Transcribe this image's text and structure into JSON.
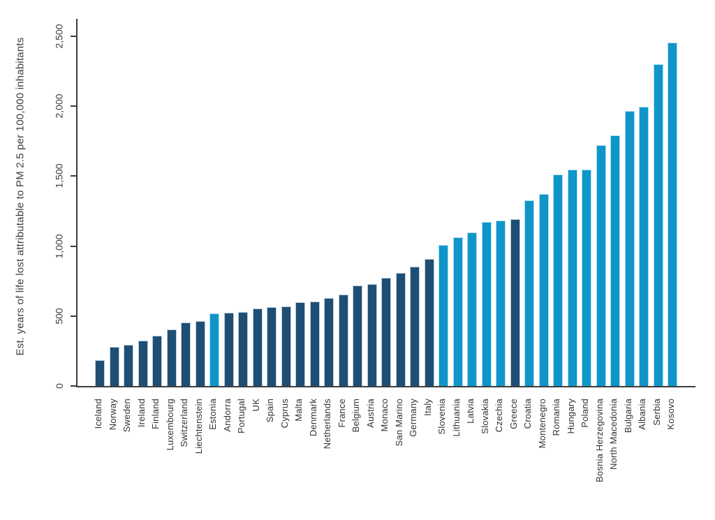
{
  "figure": {
    "background": "#ffffff",
    "axis_color": "#3c3c3c",
    "text_color": "#3d3d3d"
  },
  "chart_data": {
    "type": "bar",
    "title": "",
    "xlabel": "",
    "ylabel": "Est. years of life lost attributable to PM 2.5 per 100,000 inhabitants",
    "ylim": [
      0,
      2500
    ],
    "yticks": [
      0,
      500,
      1000,
      1500,
      2000,
      2500
    ],
    "ytick_labels": [
      "0",
      "500",
      "1,000",
      "1,500",
      "2,000",
      "2,500"
    ],
    "grid": false,
    "legend_position": "none",
    "bar_colors": {
      "dark": "#1f4e74",
      "light": "#1095c8"
    },
    "categories": [
      "Iceland",
      "Norway",
      "Sweden",
      "Ireland",
      "Finland",
      "Luxembourg",
      "Switzerland",
      "Liechtenstein",
      "Estonia",
      "Andorra",
      "Portugal",
      "UK",
      "Spain",
      "Cyprus",
      "Malta",
      "Denmark",
      "Netherlands",
      "France",
      "Belgium",
      "Austria",
      "Monaco",
      "San Marino",
      "Germany",
      "Italy",
      "Slovenia",
      "Lithuania",
      "Latvia",
      "Slovakia",
      "Czechia",
      "Greece",
      "Croatia",
      "Montenegro",
      "Romania",
      "Hungary",
      "Poland",
      "Bosnia Herzegovina",
      "North Macedonia",
      "Bulgaria",
      "Albania",
      "Serbia",
      "Kosovo"
    ],
    "values": [
      185,
      277,
      295,
      326,
      361,
      406,
      452,
      464,
      519,
      523,
      531,
      553,
      564,
      568,
      600,
      602,
      627,
      652,
      718,
      730,
      773,
      806,
      853,
      910,
      1008,
      1062,
      1098,
      1172,
      1182,
      1195,
      1329,
      1374,
      1511,
      1548,
      1549,
      1720,
      1792,
      1968,
      1998,
      2301,
      2456
    ],
    "groups": [
      "dark",
      "dark",
      "dark",
      "dark",
      "dark",
      "dark",
      "dark",
      "dark",
      "light",
      "dark",
      "dark",
      "dark",
      "dark",
      "dark",
      "dark",
      "dark",
      "dark",
      "dark",
      "dark",
      "dark",
      "dark",
      "dark",
      "dark",
      "dark",
      "light",
      "light",
      "light",
      "light",
      "light",
      "dark",
      "light",
      "light",
      "light",
      "light",
      "light",
      "light",
      "light",
      "light",
      "light",
      "light",
      "light"
    ]
  }
}
